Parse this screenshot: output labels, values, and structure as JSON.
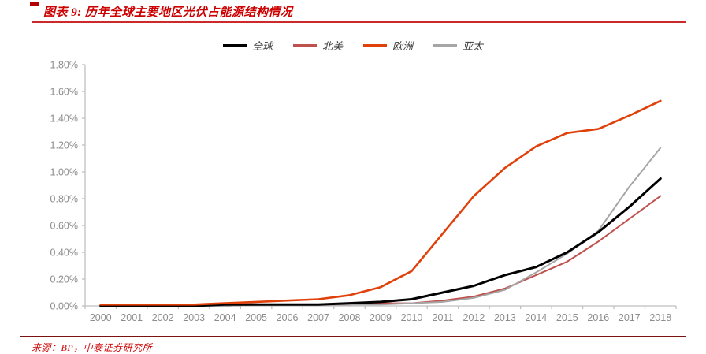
{
  "header": {
    "title": "图表 9:  历年全球主要地区光伏占能源结构情况"
  },
  "footer": {
    "source": "来源：BP，中泰证券研究所"
  },
  "chart_data": {
    "type": "line",
    "title": "历年全球主要地区光伏占能源结构情况",
    "xlabel": "",
    "ylabel": "",
    "ylim": [
      0,
      1.8
    ],
    "ytick_step": 0.2,
    "y_tick_labels": [
      "0.00%",
      "0.20%",
      "0.40%",
      "0.60%",
      "0.80%",
      "1.00%",
      "1.20%",
      "1.40%",
      "1.60%",
      "1.80%"
    ],
    "grid": false,
    "legend_position": "top",
    "categories": [
      "2000",
      "2001",
      "2002",
      "2003",
      "2004",
      "2005",
      "2006",
      "2007",
      "2008",
      "2009",
      "2010",
      "2011",
      "2012",
      "2013",
      "2014",
      "2015",
      "2016",
      "2017",
      "2018"
    ],
    "series": [
      {
        "name": "全球",
        "color": "#000000",
        "values": [
          0.0,
          0.0,
          0.0,
          0.0,
          0.01,
          0.01,
          0.01,
          0.01,
          0.02,
          0.03,
          0.05,
          0.1,
          0.15,
          0.23,
          0.29,
          0.4,
          0.55,
          0.74,
          0.95
        ]
      },
      {
        "name": "北美",
        "color": "#c0504d",
        "values": [
          0.0,
          0.0,
          0.0,
          0.0,
          0.0,
          0.01,
          0.01,
          0.01,
          0.01,
          0.02,
          0.02,
          0.04,
          0.07,
          0.13,
          0.23,
          0.33,
          0.48,
          0.65,
          0.82
        ]
      },
      {
        "name": "欧洲",
        "color": "#e0400a",
        "values": [
          0.01,
          0.01,
          0.01,
          0.01,
          0.02,
          0.03,
          0.04,
          0.05,
          0.08,
          0.14,
          0.26,
          0.54,
          0.82,
          1.03,
          1.19,
          1.29,
          1.32,
          1.42,
          1.53
        ]
      },
      {
        "name": "亚太",
        "color": "#a6a6a6",
        "values": [
          0.0,
          0.0,
          0.0,
          0.0,
          0.0,
          0.01,
          0.01,
          0.01,
          0.01,
          0.01,
          0.02,
          0.03,
          0.06,
          0.12,
          0.25,
          0.39,
          0.56,
          0.89,
          1.18
        ]
      }
    ],
    "axis_color": "#bfbfbf",
    "tick_label_color": "#8c8c8c"
  }
}
